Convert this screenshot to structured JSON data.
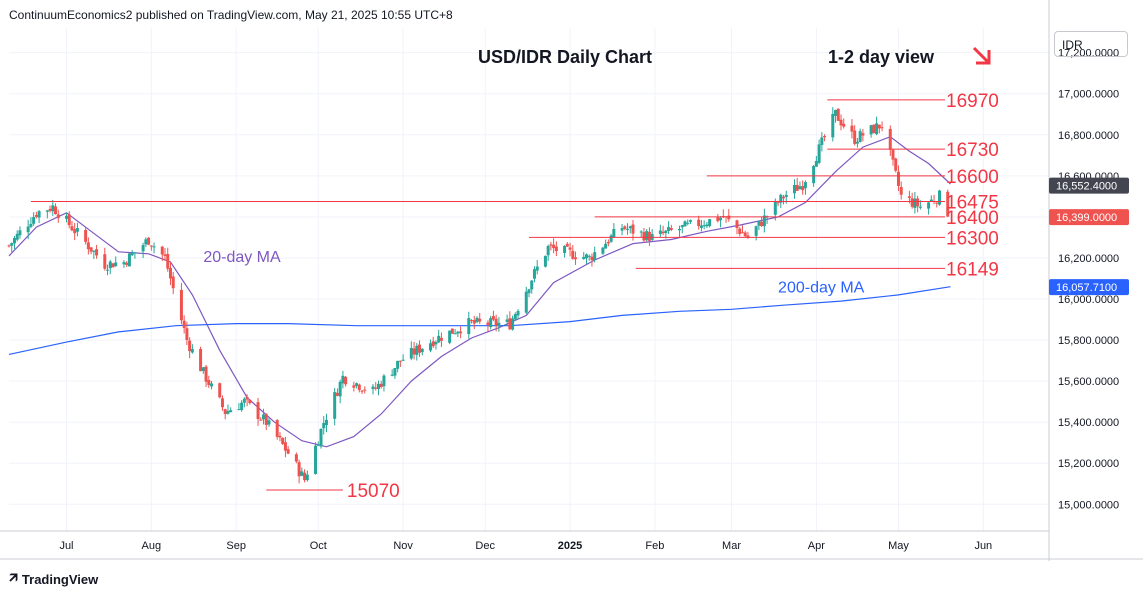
{
  "header": {
    "published": "ContinuumEconomics2 published on TradingView.com, May 21, 2025 10:55 UTC+8"
  },
  "footer": {
    "brand": "TradingView",
    "logo_icon": "tradingview-logo-icon"
  },
  "currency_label": "IDR",
  "colors": {
    "up": "#26a69a",
    "down": "#ef5350",
    "ma20": "#7e57c2",
    "ma200": "#2962ff",
    "level": "#f23645",
    "annotation": "#f23645"
  },
  "chart_data": {
    "type": "candlestick",
    "title": "USD/IDR Daily Chart",
    "subtitle": "1-2 day view",
    "view_arrow": "down-right-arrow-icon",
    "ylim": [
      14870,
      17320
    ],
    "y_ticks": [
      "17,200.0000",
      "17,000.0000",
      "16,800.0000",
      "16,600.0000",
      "16,400.0000",
      "16,200.0000",
      "16,000.0000",
      "15,800.0000",
      "15,600.0000",
      "15,400.0000",
      "15,200.0000",
      "15,000.0000"
    ],
    "y_tick_values": [
      17200,
      17000,
      16800,
      16600,
      16400,
      16200,
      16000,
      15800,
      15600,
      15400,
      15200,
      15000
    ],
    "x_ticks": [
      {
        "label": "Jul",
        "date": "2024-07-01"
      },
      {
        "label": "Aug",
        "date": "2024-08-01"
      },
      {
        "label": "Sep",
        "date": "2024-09-01"
      },
      {
        "label": "Oct",
        "date": "2024-10-01"
      },
      {
        "label": "Nov",
        "date": "2024-11-01"
      },
      {
        "label": "Dec",
        "date": "2024-12-01"
      },
      {
        "label": "2025",
        "date": "2025-01-01"
      },
      {
        "label": "Feb",
        "date": "2025-02-01"
      },
      {
        "label": "Mar",
        "date": "2025-03-01"
      },
      {
        "label": "Apr",
        "date": "2025-04-01"
      },
      {
        "label": "May",
        "date": "2025-05-01"
      },
      {
        "label": "Jun",
        "date": "2025-06-01"
      }
    ],
    "x_range": [
      "2024-06-10",
      "2025-06-25"
    ],
    "close_series": [
      [
        "2024-06-10",
        16260
      ],
      [
        "2024-06-20",
        16420
      ],
      [
        "2024-06-26",
        16450
      ],
      [
        "2024-07-05",
        16320
      ],
      [
        "2024-07-15",
        16170
      ],
      [
        "2024-07-22",
        16180
      ],
      [
        "2024-07-31",
        16290
      ],
      [
        "2024-08-06",
        16200
      ],
      [
        "2024-08-14",
        15800
      ],
      [
        "2024-08-20",
        15640
      ],
      [
        "2024-08-28",
        15450
      ],
      [
        "2024-09-04",
        15500
      ],
      [
        "2024-09-12",
        15400
      ],
      [
        "2024-09-20",
        15250
      ],
      [
        "2024-09-26",
        15120
      ],
      [
        "2024-10-03",
        15400
      ],
      [
        "2024-10-10",
        15620
      ],
      [
        "2024-10-21",
        15550
      ],
      [
        "2024-10-31",
        15700
      ],
      [
        "2024-11-12",
        15800
      ],
      [
        "2024-11-25",
        15880
      ],
      [
        "2024-12-10",
        15880
      ],
      [
        "2024-12-18",
        16100
      ],
      [
        "2024-12-24",
        16250
      ],
      [
        "2025-01-08",
        16200
      ],
      [
        "2025-01-20",
        16350
      ],
      [
        "2025-01-31",
        16300
      ],
      [
        "2025-02-12",
        16350
      ],
      [
        "2025-02-26",
        16400
      ],
      [
        "2025-03-07",
        16300
      ],
      [
        "2025-03-20",
        16500
      ],
      [
        "2025-03-27",
        16560
      ],
      [
        "2025-04-08",
        16900
      ],
      [
        "2025-04-15",
        16780
      ],
      [
        "2025-04-25",
        16850
      ],
      [
        "2025-05-02",
        16500
      ],
      [
        "2025-05-09",
        16450
      ],
      [
        "2025-05-16",
        16500
      ],
      [
        "2025-05-20",
        16399
      ]
    ],
    "series": [
      {
        "name": "20-day MA",
        "points": [
          [
            "2024-06-10",
            16210
          ],
          [
            "2024-06-20",
            16350
          ],
          [
            "2024-07-01",
            16420
          ],
          [
            "2024-07-10",
            16330
          ],
          [
            "2024-07-20",
            16230
          ],
          [
            "2024-07-31",
            16220
          ],
          [
            "2024-08-08",
            16180
          ],
          [
            "2024-08-16",
            16020
          ],
          [
            "2024-08-26",
            15750
          ],
          [
            "2024-09-05",
            15520
          ],
          [
            "2024-09-15",
            15400
          ],
          [
            "2024-09-25",
            15310
          ],
          [
            "2024-10-04",
            15280
          ],
          [
            "2024-10-14",
            15330
          ],
          [
            "2024-10-24",
            15440
          ],
          [
            "2024-11-04",
            15600
          ],
          [
            "2024-11-15",
            15720
          ],
          [
            "2024-11-26",
            15810
          ],
          [
            "2024-12-06",
            15860
          ],
          [
            "2024-12-16",
            15920
          ],
          [
            "2024-12-26",
            16080
          ],
          [
            "2025-01-10",
            16190
          ],
          [
            "2025-01-24",
            16270
          ],
          [
            "2025-02-07",
            16290
          ],
          [
            "2025-02-20",
            16330
          ],
          [
            "2025-03-04",
            16360
          ],
          [
            "2025-03-18",
            16400
          ],
          [
            "2025-03-28",
            16470
          ],
          [
            "2025-04-08",
            16620
          ],
          [
            "2025-04-18",
            16740
          ],
          [
            "2025-04-28",
            16790
          ],
          [
            "2025-05-05",
            16720
          ],
          [
            "2025-05-12",
            16660
          ],
          [
            "2025-05-20",
            16560
          ]
        ]
      },
      {
        "name": "200-day MA",
        "points": [
          [
            "2024-06-10",
            15730
          ],
          [
            "2024-07-01",
            15790
          ],
          [
            "2024-07-20",
            15840
          ],
          [
            "2024-08-10",
            15870
          ],
          [
            "2024-09-01",
            15880
          ],
          [
            "2024-09-20",
            15880
          ],
          [
            "2024-10-15",
            15870
          ],
          [
            "2024-11-10",
            15870
          ],
          [
            "2024-12-10",
            15870
          ],
          [
            "2025-01-01",
            15890
          ],
          [
            "2025-01-20",
            15920
          ],
          [
            "2025-02-10",
            15940
          ],
          [
            "2025-03-01",
            15950
          ],
          [
            "2025-03-20",
            15970
          ],
          [
            "2025-04-10",
            15990
          ],
          [
            "2025-05-01",
            16020
          ],
          [
            "2025-05-20",
            16060
          ]
        ]
      }
    ],
    "levels": [
      {
        "value": 16970,
        "label": "16970",
        "from": "2025-04-05"
      },
      {
        "value": 16730,
        "label": "16730",
        "from": "2025-04-05"
      },
      {
        "value": 16600,
        "label": "16600",
        "from": "2025-02-20"
      },
      {
        "value": 16475,
        "label": "16475",
        "from": "2024-06-18"
      },
      {
        "value": 16400,
        "label": "16400",
        "from": "2025-01-10"
      },
      {
        "value": 16300,
        "label": "16300",
        "from": "2024-12-17"
      },
      {
        "value": 16149,
        "label": "16149",
        "from": "2025-01-25"
      },
      {
        "value": 15070,
        "label": "15070",
        "from": "2024-09-12",
        "to": "2024-10-10"
      }
    ],
    "annotations": [
      {
        "text": "20-day MA",
        "color": "ma20",
        "x": "2024-08-20",
        "y": 16210
      },
      {
        "text": "200-day MA",
        "color": "ma200",
        "x": "2025-03-18",
        "y": 16060
      }
    ],
    "price_tags": [
      {
        "label": "16,552.4000",
        "value": 16552,
        "color": "#434651"
      },
      {
        "label": "16,399.0000",
        "value": 16399,
        "color": "#ef5350"
      },
      {
        "label": "16,057.7100",
        "value": 16058,
        "color": "#2962ff"
      }
    ]
  }
}
